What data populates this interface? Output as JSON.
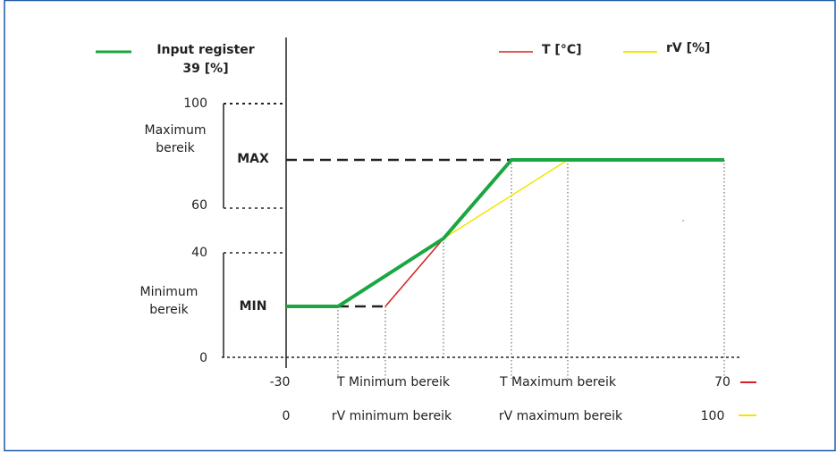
{
  "legend": {
    "input_register_line1": "Input register",
    "input_register_line2": "39 [%]",
    "t_label": "T [°C]",
    "rv_label": "rV [%]"
  },
  "y_labels": {
    "y100": "100",
    "y60": "60",
    "y40": "40",
    "y0": "0"
  },
  "ranges": {
    "max_line1": "Maximum",
    "max_line2": "bereik",
    "min_line1": "Minimum",
    "min_line2": "bereik",
    "max_tag": "MAX",
    "min_tag": "MIN"
  },
  "x_labels": {
    "t_start": "-30",
    "t_end": "70",
    "rv_start": "0",
    "rv_end": "100",
    "t_min": "T Minimum bereik",
    "t_max": "T Maximum bereik",
    "rv_min": "rV minimum bereik",
    "rv_max": "rV maximum bereik"
  },
  "colors": {
    "frame": "#1f5aa8",
    "output": "#1aa640",
    "temperature": "#d62020",
    "humidity": "#f2e600",
    "axis": "#222222"
  }
}
